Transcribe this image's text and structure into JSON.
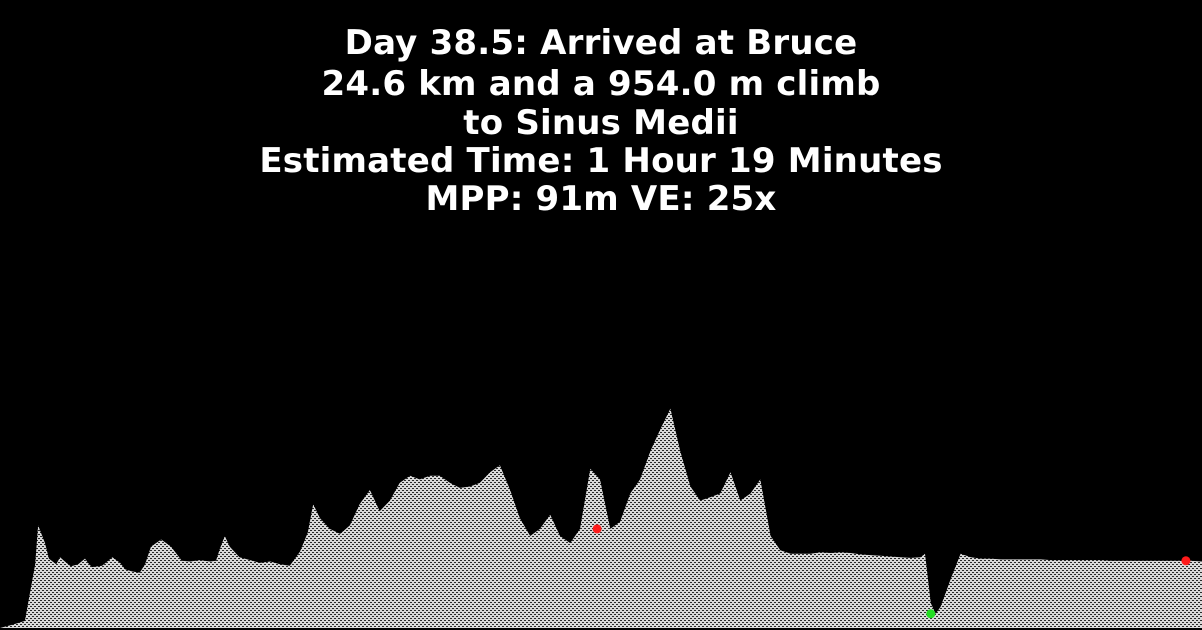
{
  "title_lines": [
    "Day 38.5: Arrived at Bruce",
    "24.6 km and a 954.0 m climb",
    "to Sinus Medii",
    "Estimated Time: 1 Hour 19 Minutes",
    "MPP: 91m VE: 25x"
  ],
  "colors": {
    "background": "#000000",
    "text": "#ffffff",
    "terrain_fill": "#d9d9d9",
    "terrain_hatch": "#2a2a2a",
    "marker_red": "#ff1a1a",
    "marker_green": "#22dd22"
  },
  "chart_data": {
    "type": "area",
    "title": "",
    "xlabel": "",
    "ylabel": "",
    "grid": false,
    "legend": "none",
    "x_unit": "km",
    "y_unit": "m (relative elevation)",
    "xlim": [
      0,
      24.6
    ],
    "ylim": [
      0,
      3900
    ],
    "x": [
      0,
      0.27,
      0.51,
      0.72,
      0.78,
      0.92,
      1.0,
      1.15,
      1.23,
      1.31,
      1.45,
      1.6,
      1.74,
      1.8,
      1.88,
      2.09,
      2.3,
      2.46,
      2.56,
      2.7,
      2.86,
      2.97,
      3.09,
      3.3,
      3.5,
      3.72,
      3.89,
      4.09,
      4.3,
      4.42,
      4.5,
      4.6,
      4.7,
      4.9,
      5.12,
      5.32,
      5.53,
      5.73,
      5.93,
      6.14,
      6.3,
      6.41,
      6.55,
      6.75,
      6.96,
      7.16,
      7.36,
      7.57,
      7.77,
      7.98,
      8.18,
      8.39,
      8.59,
      8.8,
      9.0,
      9.21,
      9.41,
      9.62,
      9.82,
      10.03,
      10.23,
      10.44,
      10.64,
      10.85,
      11.05,
      11.26,
      11.46,
      11.67,
      11.87,
      12.08,
      12.28,
      12.49,
      12.69,
      12.9,
      13.1,
      13.31,
      13.51,
      13.72,
      13.92,
      14.13,
      14.33,
      14.54,
      14.74,
      14.95,
      15.15,
      15.36,
      15.56,
      15.77,
      15.97,
      16.18,
      16.38,
      16.59,
      16.79,
      17.0,
      17.2,
      17.41,
      17.61,
      17.82,
      18.02,
      18.23,
      18.43,
      18.64,
      18.84,
      18.93,
      19.05,
      19.15,
      19.25,
      19.46,
      19.66,
      19.87,
      20.07,
      20.28,
      20.48,
      20.69,
      20.89,
      21.1,
      21.3,
      21.51,
      21.71,
      21.92,
      22.12,
      22.33,
      22.53,
      22.74,
      22.94,
      23.15,
      23.35,
      23.56,
      23.76,
      23.97,
      24.17,
      24.38,
      24.6
    ],
    "y": [
      0,
      50,
      100,
      900,
      1450,
      1200,
      980,
      900,
      1000,
      950,
      870,
      900,
      980,
      920,
      860,
      880,
      1000,
      920,
      830,
      800,
      780,
      900,
      1150,
      1250,
      1150,
      950,
      940,
      960,
      940,
      950,
      1120,
      1300,
      1150,
      1000,
      960,
      920,
      940,
      900,
      880,
      1080,
      1350,
      1750,
      1550,
      1400,
      1330,
      1450,
      1750,
      1950,
      1650,
      1800,
      2050,
      2150,
      2100,
      2150,
      2150,
      2050,
      1980,
      2000,
      2050,
      2200,
      2300,
      1950,
      1550,
      1300,
      1400,
      1600,
      1300,
      1200,
      1400,
      2250,
      2100,
      1400,
      1500,
      1900,
      2100,
      2500,
      2800,
      3100,
      2500,
      2000,
      1800,
      1850,
      1900,
      2200,
      1800,
      1900,
      2100,
      1300,
      1100,
      1050,
      1050,
      1050,
      1070,
      1060,
      1070,
      1060,
      1040,
      1030,
      1020,
      1010,
      1000,
      990,
      1000,
      1050,
      350,
      200,
      300,
      700,
      1050,
      1000,
      980,
      980,
      970,
      970,
      970,
      970,
      970,
      960,
      960,
      960,
      960,
      960,
      960,
      950,
      950,
      950,
      950,
      950,
      950,
      950,
      950,
      950,
      940
    ],
    "markers": [
      {
        "x": 12.22,
        "y": 1400,
        "color": "red"
      },
      {
        "x": 19.05,
        "y": 200,
        "color": "green"
      },
      {
        "x": 24.27,
        "y": 950,
        "color": "red"
      }
    ]
  }
}
